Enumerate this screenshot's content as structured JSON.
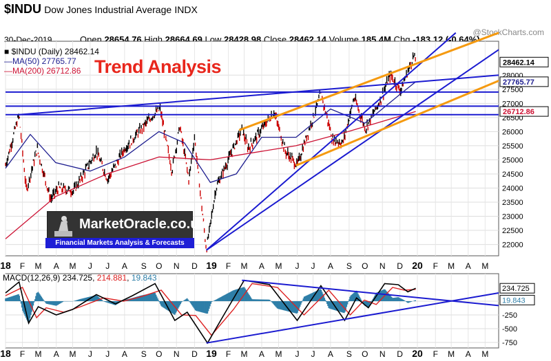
{
  "header": {
    "symbol": "$INDU",
    "name": "Dow Jones Industrial Average",
    "exchange": "INDX",
    "stamp": "@StockCharts.com",
    "date": "30-Dec-2019",
    "open_label": "Open",
    "open": "28654.76",
    "high_label": "High",
    "high": "28664.69",
    "low_label": "Low",
    "low": "28428.98",
    "close_label": "Close",
    "close": "28462.14",
    "volume_label": "Volume",
    "volume": "185.4M",
    "chg_label": "Chg",
    "chg": "-183.12 (-0.64%)"
  },
  "legend": {
    "price": "$INDU (Daily) 28462.14",
    "ma50": "MA(50) 27765.77",
    "ma200": "MA(200) 26712.86"
  },
  "overlay_title": "Trend Analysis",
  "logo": {
    "name": "MarketOracle.co.uk",
    "tagline": "Financial Markets Analysis & Forecasts"
  },
  "macd_legend": {
    "label": "MACD(12,26,9)",
    "macd": "234.725",
    "signal": "214.881",
    "hist": "19.843"
  },
  "colors": {
    "price_up": "#000000",
    "price_down": "#cc0000",
    "ma50": "#1d1d8f",
    "ma200": "#cc1133",
    "trend_blue": "#1a1ad0",
    "trend_orange": "#f59a10",
    "macd_line": "#000000",
    "signal_line": "#dd2222",
    "histogram": "#2f7fa8",
    "title_red": "#e8261c"
  },
  "chart_data": [
    {
      "type": "line",
      "title": "$INDU Daily",
      "x_tick_labels": [
        "18",
        "F",
        "M",
        "A",
        "M",
        "J",
        "J",
        "A",
        "S",
        "O",
        "N",
        "D",
        "19",
        "F",
        "M",
        "A",
        "M",
        "J",
        "J",
        "A",
        "S",
        "O",
        "N",
        "D",
        "20",
        "F",
        "M",
        "A",
        "M"
      ],
      "y_ticks": [
        22000,
        22500,
        23000,
        23500,
        24000,
        24500,
        25000,
        25500,
        26000,
        26500,
        27000,
        27500,
        28000
      ],
      "y_tick_labels": [
        "22000",
        "22500",
        "23000",
        "23500",
        "24000",
        "24500",
        "25000",
        "25500",
        "26000",
        "26500",
        "27000",
        "27500",
        "28000"
      ],
      "ylim": [
        21600,
        29200
      ],
      "price_label": "28462.14",
      "ma50_label": "27765.77",
      "ma200_label": "26712.86",
      "series": [
        {
          "name": "$INDU",
          "x": [
            "2018-01-02",
            "2018-01-26",
            "2018-02-08",
            "2018-02-27",
            "2018-03-23",
            "2018-04-06",
            "2018-05-03",
            "2018-06-12",
            "2018-07-02",
            "2018-08-01",
            "2018-09-21",
            "2018-10-03",
            "2018-10-24",
            "2018-11-07",
            "2018-11-23",
            "2018-12-03",
            "2018-12-24",
            "2019-01-10",
            "2019-02-25",
            "2019-03-08",
            "2019-04-23",
            "2019-05-13",
            "2019-06-03",
            "2019-07-15",
            "2019-08-05",
            "2019-08-23",
            "2019-09-12",
            "2019-10-02",
            "2019-10-28",
            "2019-11-15",
            "2019-12-03",
            "2019-12-27",
            "2019-12-30"
          ],
          "values": [
            24800,
            26600,
            23900,
            25400,
            23600,
            24000,
            23900,
            25300,
            24300,
            25400,
            26600,
            26800,
            24600,
            26200,
            24300,
            25800,
            21800,
            24000,
            26100,
            25400,
            26700,
            25300,
            24800,
            27350,
            25700,
            25600,
            27200,
            26100,
            27100,
            28000,
            27450,
            28700,
            28462
          ]
        },
        {
          "name": "MA(50)",
          "x": [
            "2018-01-02",
            "2018-02-15",
            "2018-04-01",
            "2018-06-01",
            "2018-08-01",
            "2018-10-01",
            "2018-11-15",
            "2018-12-31",
            "2019-02-15",
            "2019-04-01",
            "2019-06-01",
            "2019-08-01",
            "2019-10-01",
            "2019-12-01",
            "2019-12-30"
          ],
          "values": [
            24700,
            25900,
            24900,
            24600,
            25100,
            26000,
            25600,
            24200,
            24500,
            25800,
            25800,
            26800,
            26300,
            27300,
            27766
          ]
        },
        {
          "name": "MA(200)",
          "x": [
            "2018-01-02",
            "2018-04-01",
            "2018-07-01",
            "2018-10-01",
            "2018-12-31",
            "2019-03-01",
            "2019-06-01",
            "2019-09-01",
            "2019-12-30"
          ],
          "values": [
            22200,
            23700,
            24500,
            25100,
            25000,
            25200,
            25500,
            26000,
            26713
          ]
        }
      ],
      "trendlines": [
        {
          "color": "blue",
          "points": [
            [
              "2018-01-26",
              26600
            ],
            [
              "2020-05-25",
              28000
            ]
          ]
        },
        {
          "color": "blue",
          "points": [
            [
              "2018-01-02",
              26600
            ],
            [
              "2020-05-25",
              26600
            ]
          ]
        },
        {
          "color": "blue",
          "points": [
            [
              "2018-01-02",
              26900
            ],
            [
              "2020-05-25",
              26900
            ]
          ]
        },
        {
          "color": "blue",
          "points": [
            [
              "2018-01-02",
              27400
            ],
            [
              "2020-05-25",
              27400
            ]
          ]
        },
        {
          "color": "blue",
          "points": [
            [
              "2018-12-24",
              21800
            ],
            [
              "2020-03-10",
              29500
            ]
          ]
        },
        {
          "color": "blue",
          "points": [
            [
              "2018-12-24",
              21800
            ],
            [
              "2020-05-25",
              28900
            ]
          ]
        },
        {
          "color": "orange",
          "points": [
            [
              "2019-02-20",
              26050
            ],
            [
              "2020-05-25",
              29500
            ]
          ]
        },
        {
          "color": "orange",
          "points": [
            [
              "2019-06-01",
              24800
            ],
            [
              "2020-05-25",
              27800
            ]
          ]
        }
      ]
    },
    {
      "type": "line",
      "title": "MACD(12,26,9)",
      "y_ticks": [
        -750,
        -500,
        -250,
        0
      ],
      "y_tick_labels": [
        "-750",
        "-500",
        "-250",
        "0"
      ],
      "ylim": [
        -850,
        500
      ],
      "macd_label": "234.725",
      "hist_label": "19.843",
      "series": [
        {
          "name": "MACD(12,26,9)",
          "x": [
            "2018-01-02",
            "2018-01-26",
            "2018-02-12",
            "2018-03-01",
            "2018-04-02",
            "2018-05-01",
            "2018-06-12",
            "2018-07-16",
            "2018-08-15",
            "2018-09-24",
            "2018-10-29",
            "2018-11-20",
            "2018-12-26",
            "2019-01-24",
            "2019-03-01",
            "2019-04-15",
            "2019-06-03",
            "2019-07-15",
            "2019-08-26",
            "2019-09-16",
            "2019-10-07",
            "2019-11-05",
            "2019-11-29",
            "2019-12-16",
            "2019-12-30"
          ],
          "values": [
            150,
            350,
            -400,
            -100,
            -250,
            -150,
            120,
            -50,
            100,
            320,
            -350,
            -200,
            -760,
            -250,
            380,
            300,
            -350,
            280,
            -350,
            60,
            -120,
            320,
            300,
            170,
            235
          ]
        },
        {
          "name": "Signal",
          "x": [
            "2018-01-02",
            "2018-02-01",
            "2018-02-26",
            "2018-03-15",
            "2018-04-15",
            "2018-05-15",
            "2018-06-25",
            "2018-07-30",
            "2018-08-30",
            "2018-10-05",
            "2018-11-10",
            "2018-12-05",
            "2019-01-02",
            "2019-02-10",
            "2019-03-15",
            "2019-04-29",
            "2019-06-15",
            "2019-07-29",
            "2019-09-05",
            "2019-09-30",
            "2019-10-21",
            "2019-11-19",
            "2019-12-10",
            "2019-12-30"
          ],
          "values": [
            100,
            250,
            -300,
            -120,
            -200,
            -100,
            60,
            0,
            80,
            200,
            -250,
            -260,
            -620,
            -150,
            320,
            250,
            -250,
            200,
            -250,
            20,
            -60,
            250,
            200,
            215
          ]
        }
      ],
      "trendlines": [
        {
          "color": "blue",
          "points": [
            [
              "2018-12-24",
              -760
            ],
            [
              "2020-05-25",
              150
            ]
          ]
        },
        {
          "color": "blue",
          "points": [
            [
              "2019-02-25",
              380
            ],
            [
              "2020-05-25",
              -80
            ]
          ]
        }
      ]
    }
  ]
}
